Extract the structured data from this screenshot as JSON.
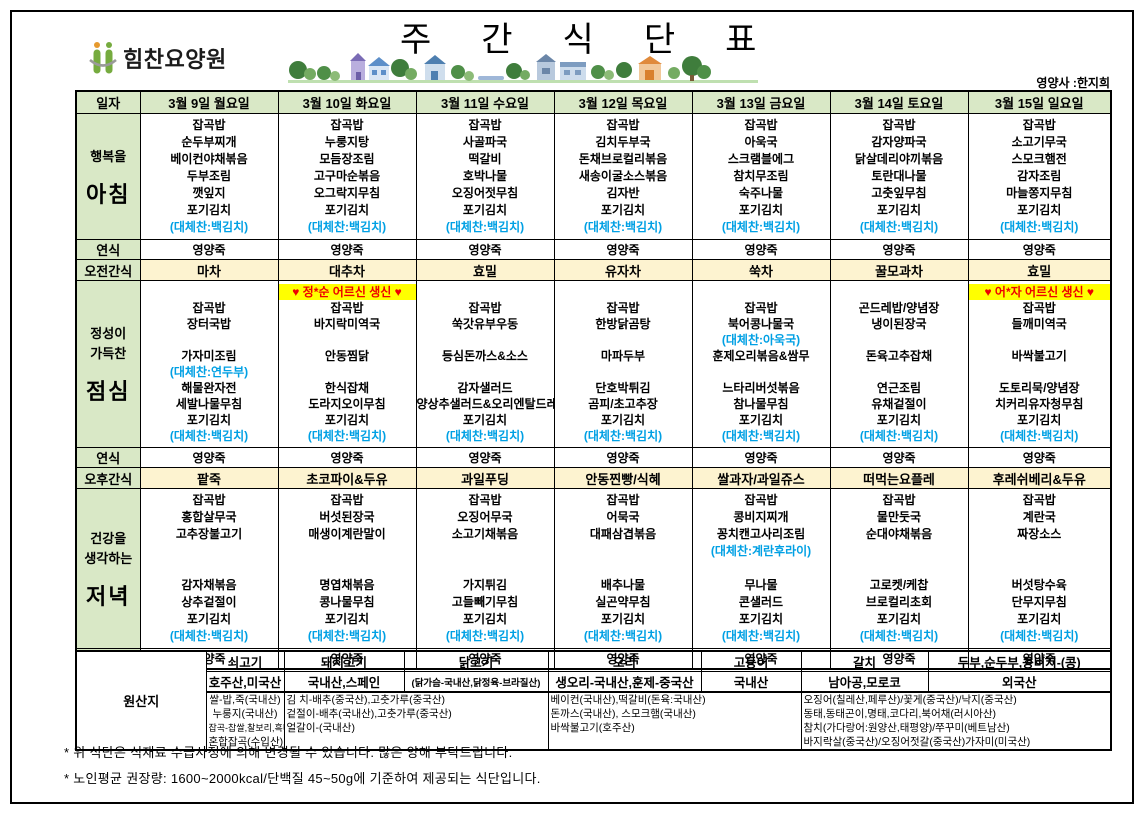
{
  "header": {
    "facility_name": "힘찬요양원",
    "title": "주간식단표",
    "nutritionist": "영양사 :한지희"
  },
  "table": {
    "date_label": "일자",
    "days": [
      "3월 9일 월요일",
      "3월 10일 화요일",
      "3월 11일 수요일",
      "3월 12일 목요일",
      "3월 13일 금요일",
      "3월 14일 토요일",
      "3월 15일 일요일"
    ],
    "soft_label": "연식",
    "soft_value": "영양죽",
    "morning_snack_label": "오전간식",
    "afternoon_snack_label": "오후간식",
    "breakfast": {
      "label_small": [
        "행복을"
      ],
      "label_big": "아침",
      "menus": [
        [
          "잡곡밥",
          "순두부찌개",
          "베이컨야채볶음",
          "두부조림",
          "깻잎지",
          "포기김치",
          "(대체찬:백김치)"
        ],
        [
          "잡곡밥",
          "누룽지탕",
          "모듬장조림",
          "고구마순볶음",
          "오그락지무침",
          "포기김치",
          "(대체찬:백김치)"
        ],
        [
          "잡곡밥",
          "사골파국",
          "떡갈비",
          "호박나물",
          "오징어젓무침",
          "포기김치",
          "(대체찬:백김치)"
        ],
        [
          "잡곡밥",
          "김치두부국",
          "돈채브로컬리볶음",
          "새송이굴소스볶음",
          "김자반",
          "포기김치",
          "(대체찬:백김치)"
        ],
        [
          "잡곡밥",
          "아욱국",
          "스크램블에그",
          "참치무조림",
          "숙주나물",
          "포기김치",
          "(대체찬:백김치)"
        ],
        [
          "잡곡밥",
          "감자양파국",
          "닭살데리야끼볶음",
          "토란대나물",
          "고춧잎무침",
          "포기김치",
          "(대체찬:백김치)"
        ],
        [
          "잡곡밥",
          "소고기무국",
          "스모크햄전",
          "감자조림",
          "마늘쫑지무침",
          "포기김치",
          "(대체찬:백김치)"
        ]
      ]
    },
    "morning_snacks": [
      "마차",
      "대추차",
      "효밀",
      "유자차",
      "쑥차",
      "꿀모과차",
      "효밀"
    ],
    "lunch": {
      "label_small": [
        "정성이",
        "가득찬"
      ],
      "label_big": "점심",
      "banners": [
        "",
        "♥ 정*순 어르신 생신 ♥",
        "",
        "",
        "",
        "",
        "♥ 어*자 어르신 생신 ♥"
      ],
      "menus": [
        [
          "잡곡밥",
          "장터국밥",
          "",
          "가자미조림",
          "(대체찬:연두부)",
          "해물완자전",
          "세발나물무침",
          "포기김치",
          "(대체찬:백김치)"
        ],
        [
          "잡곡밥",
          "바지락미역국",
          "",
          "안동찜닭",
          "",
          "한식잡채",
          "도라지오이무침",
          "포기김치",
          "(대체찬:백김치)"
        ],
        [
          "잡곡밥",
          "쑥갓유부우동",
          "",
          "등심돈까스&소스",
          "",
          "감자샐러드",
          "양상추샐러드&오리엔탈드레싱",
          "포기김치",
          "(대체찬:백김치)"
        ],
        [
          "잡곡밥",
          "한방닭곰탕",
          "",
          "마파두부",
          "",
          "단호박튀김",
          "곰피/초고추장",
          "포기김치",
          "(대체찬:백김치)"
        ],
        [
          "잡곡밥",
          "북어콩나물국",
          "(대체찬:아욱국)",
          "훈제오리볶음&쌈무",
          "",
          "느타리버섯볶음",
          "참나물무침",
          "포기김치",
          "(대체찬:백김치)"
        ],
        [
          "곤드레밥/양념장",
          "냉이된장국",
          "",
          "돈육고추잡채",
          "",
          "연근조림",
          "유채겉절이",
          "포기김치",
          "(대체찬:백김치)"
        ],
        [
          "잡곡밥",
          "들깨미역국",
          "",
          "바싹불고기",
          "",
          "도토리묵/양념장",
          "치커리유자청무침",
          "포기김치",
          "(대체찬:백김치)"
        ]
      ]
    },
    "afternoon_snacks": [
      "팥죽",
      "초코파이&두유",
      "과일푸딩",
      "안동찐빵/식혜",
      "쌀과자/과일쥬스",
      "떠먹는요플레",
      "후레쉬베리&두유"
    ],
    "dinner": {
      "label_small": [
        "건강을",
        "생각하는"
      ],
      "label_big": "저녁",
      "menus": [
        [
          "잡곡밥",
          "홍합살무국",
          "고추장불고기",
          "",
          "",
          "감자채볶음",
          "상추겉절이",
          "포기김치",
          "(대체찬:백김치)"
        ],
        [
          "잡곡밥",
          "버섯된장국",
          "매생이계란말이",
          "",
          "",
          "명엽채볶음",
          "콩나물무침",
          "포기김치",
          "(대체찬:백김치)"
        ],
        [
          "잡곡밥",
          "오징어무국",
          "소고기채볶음",
          "",
          "",
          "가지튀김",
          "고들빼기무침",
          "포기김치",
          "(대체찬:백김치)"
        ],
        [
          "잡곡밥",
          "어묵국",
          "대패삼겹볶음",
          "",
          "",
          "배추나물",
          "실곤약무침",
          "포기김치",
          "(대체찬:백김치)"
        ],
        [
          "잡곡밥",
          "콩비지찌개",
          "꽁치캔고사리조림",
          "(대체찬:계란후라이)",
          "",
          "무나물",
          "콘샐러드",
          "포기김치",
          "(대체찬:백김치)"
        ],
        [
          "잡곡밥",
          "물만둣국",
          "순대야채볶음",
          "",
          "",
          "고로켓/케찹",
          "브로컬리초회",
          "포기김치",
          "(대체찬:백김치)"
        ],
        [
          "잡곡밥",
          "계란국",
          "짜장소스",
          "",
          "",
          "버섯탕수육",
          "단무지무침",
          "포기김치",
          "(대체찬:백김치)"
        ]
      ]
    }
  },
  "origin": {
    "label": "원산지",
    "columns": [
      {
        "name": "쇠고기",
        "origin": "호주산,미국산"
      },
      {
        "name": "돼지고기",
        "origin": "국내산,스페인"
      },
      {
        "name": "닭고기",
        "origin": "(닭가슴-국내산,닭정육-브라질산)"
      },
      {
        "name": "오리",
        "origin": "생오리-국내산,훈제-중국산"
      },
      {
        "name": "고등어",
        "origin": "국내산"
      },
      {
        "name": "갈치",
        "origin": "남아공,모로코"
      },
      {
        "name": "두부,순두부,콩비지-(콩)",
        "origin": "외국산"
      }
    ],
    "details": [
      {
        "span": 1,
        "align": "center",
        "lines": [
          "쌀-밥,죽(국내산)",
          "누룽지(국내산)",
          "잡곡-찹쌀,찰보리,흑미(국내산)",
          "혼합잡곡(수입산)"
        ]
      },
      {
        "span": 2,
        "align": "left",
        "lines": [
          "김  치-배추(중국산),고춧가루(중국산)",
          "겉절이-배추(국내산),고춧가루(중국산)",
          "얼갈이-(국내산)"
        ]
      },
      {
        "span": 2,
        "align": "left",
        "lines": [
          "베이컨(국내산),떡갈비(돈육:국내산)",
          "돈까스(국내산), 스모크햄(국내산)",
          "바싹불고기(호주산)"
        ]
      },
      {
        "span": 2,
        "align": "left",
        "lines": [
          "오징어(칠레산,페루산)/꽃게(중국산)/낙지(중국산)",
          "동태,동태곤이,명태,코다리,북어채(러시아산)",
          "참치(가다랑어:원양산,태평양)/쭈꾸미(베트남산)",
          "바지락살(중국산)/오징어젓갈(중국산)가자미(미국산)"
        ]
      }
    ]
  },
  "notes": [
    "* 위 식단은 식재료 수급사정에 의해 변경될 수 있습니다. 많은 양해 부탁드립니다.",
    "* 노인평균 권장량: 1600~2000kcal/단백질 45~50g에 기준하여 제공되는 식단입니다."
  ],
  "colors": {
    "header_green": "#d9e8c6",
    "snack_yellow": "#fdf3d0",
    "banner_yellow": "#ffff00",
    "banner_red": "#ee0000",
    "alt_blue": "#00a0e4",
    "logo_green": "#76ab3f"
  }
}
